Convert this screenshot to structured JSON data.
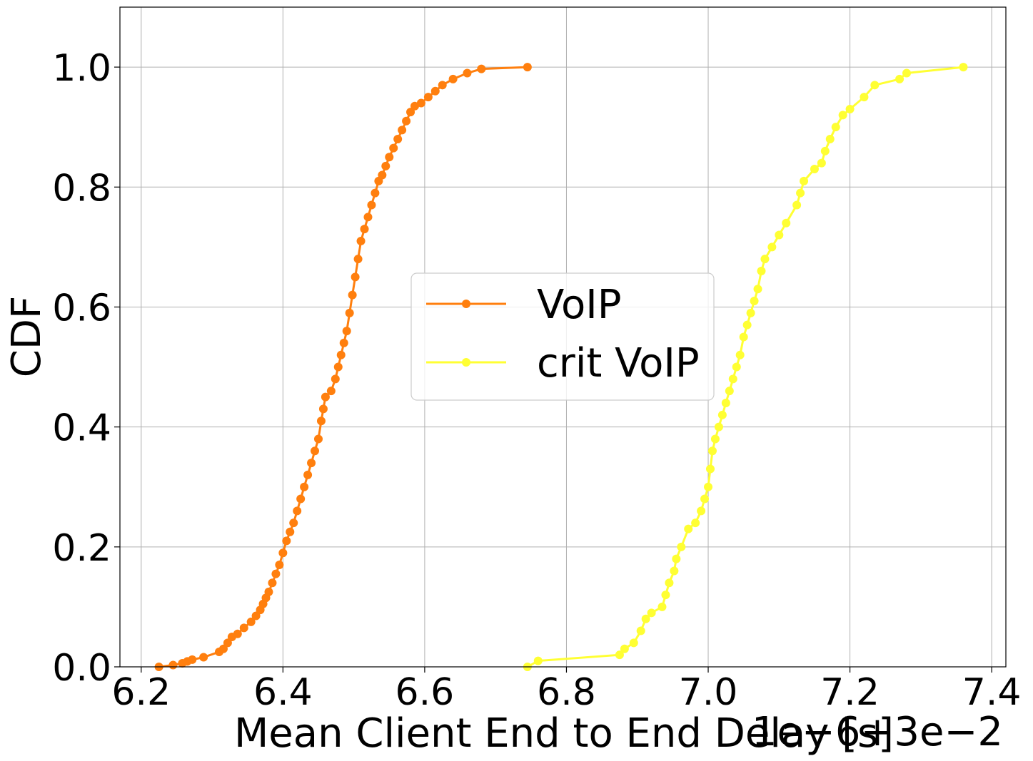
{
  "chart_data": {
    "type": "line",
    "title": "",
    "xlabel": "Mean Client End to End Delay [s]",
    "ylabel": "CDF",
    "x_offset_text": "1e−6+3e−2",
    "xlim": [
      6.17,
      7.42
    ],
    "ylim": [
      0.0,
      1.1
    ],
    "x_ticks": [
      6.2,
      6.4,
      6.6,
      6.8,
      7.0,
      7.2,
      7.4
    ],
    "x_tick_labels": [
      "6.2",
      "6.4",
      "6.6",
      "6.8",
      "7.0",
      "7.2",
      "7.4"
    ],
    "y_ticks": [
      0.0,
      0.2,
      0.4,
      0.6,
      0.8,
      1.0
    ],
    "y_tick_labels": [
      "0.0",
      "0.2",
      "0.4",
      "0.6",
      "0.8",
      "1.0"
    ],
    "grid": true,
    "legend_position": "center",
    "series": [
      {
        "name": "VoIP",
        "color": "#ff7f0e",
        "marker": "circle",
        "x": [
          6.225,
          6.245,
          6.258,
          6.265,
          6.272,
          6.288,
          6.31,
          6.316,
          6.322,
          6.328,
          6.336,
          6.345,
          6.355,
          6.362,
          6.368,
          6.372,
          6.376,
          6.38,
          6.385,
          6.39,
          6.395,
          6.4,
          6.405,
          6.41,
          6.415,
          6.42,
          6.425,
          6.43,
          6.435,
          6.44,
          6.445,
          6.45,
          6.454,
          6.457,
          6.46,
          6.468,
          6.474,
          6.478,
          6.482,
          6.486,
          6.49,
          6.494,
          6.498,
          6.502,
          6.506,
          6.51,
          6.515,
          6.52,
          6.525,
          6.53,
          6.535,
          6.54,
          6.545,
          6.55,
          6.556,
          6.562,
          6.568,
          6.574,
          6.58,
          6.586,
          6.595,
          6.605,
          6.615,
          6.625,
          6.64,
          6.66,
          6.68,
          6.745
        ],
        "y": [
          0.0,
          0.003,
          0.006,
          0.009,
          0.012,
          0.016,
          0.025,
          0.03,
          0.04,
          0.05,
          0.055,
          0.065,
          0.075,
          0.085,
          0.095,
          0.105,
          0.115,
          0.125,
          0.14,
          0.155,
          0.17,
          0.19,
          0.21,
          0.225,
          0.24,
          0.26,
          0.28,
          0.3,
          0.32,
          0.34,
          0.36,
          0.38,
          0.41,
          0.43,
          0.45,
          0.46,
          0.48,
          0.5,
          0.52,
          0.54,
          0.56,
          0.59,
          0.62,
          0.65,
          0.68,
          0.71,
          0.73,
          0.75,
          0.77,
          0.79,
          0.81,
          0.82,
          0.835,
          0.85,
          0.865,
          0.88,
          0.895,
          0.91,
          0.925,
          0.935,
          0.94,
          0.95,
          0.96,
          0.97,
          0.98,
          0.99,
          0.997,
          1.0
        ]
      },
      {
        "name": "crit VoIP",
        "color": "#ffff33",
        "marker": "circle",
        "x": [
          6.745,
          6.76,
          6.875,
          6.882,
          6.895,
          6.905,
          6.912,
          6.92,
          6.935,
          6.94,
          6.945,
          6.952,
          6.955,
          6.962,
          6.972,
          6.982,
          6.99,
          6.995,
          7.0,
          7.003,
          7.006,
          7.01,
          7.015,
          7.02,
          7.025,
          7.03,
          7.035,
          7.04,
          7.045,
          7.05,
          7.055,
          7.06,
          7.065,
          7.07,
          7.075,
          7.08,
          7.09,
          7.1,
          7.11,
          7.125,
          7.13,
          7.135,
          7.15,
          7.16,
          7.165,
          7.172,
          7.18,
          7.19,
          7.2,
          7.22,
          7.235,
          7.27,
          7.28,
          7.36
        ],
        "y": [
          0.0,
          0.01,
          0.02,
          0.03,
          0.04,
          0.06,
          0.08,
          0.09,
          0.1,
          0.12,
          0.14,
          0.16,
          0.18,
          0.2,
          0.23,
          0.24,
          0.26,
          0.28,
          0.3,
          0.33,
          0.36,
          0.38,
          0.4,
          0.42,
          0.44,
          0.46,
          0.48,
          0.5,
          0.52,
          0.55,
          0.57,
          0.59,
          0.61,
          0.63,
          0.66,
          0.68,
          0.7,
          0.72,
          0.74,
          0.77,
          0.79,
          0.81,
          0.83,
          0.84,
          0.86,
          0.88,
          0.9,
          0.92,
          0.93,
          0.95,
          0.97,
          0.98,
          0.99,
          1.0
        ]
      }
    ]
  }
}
